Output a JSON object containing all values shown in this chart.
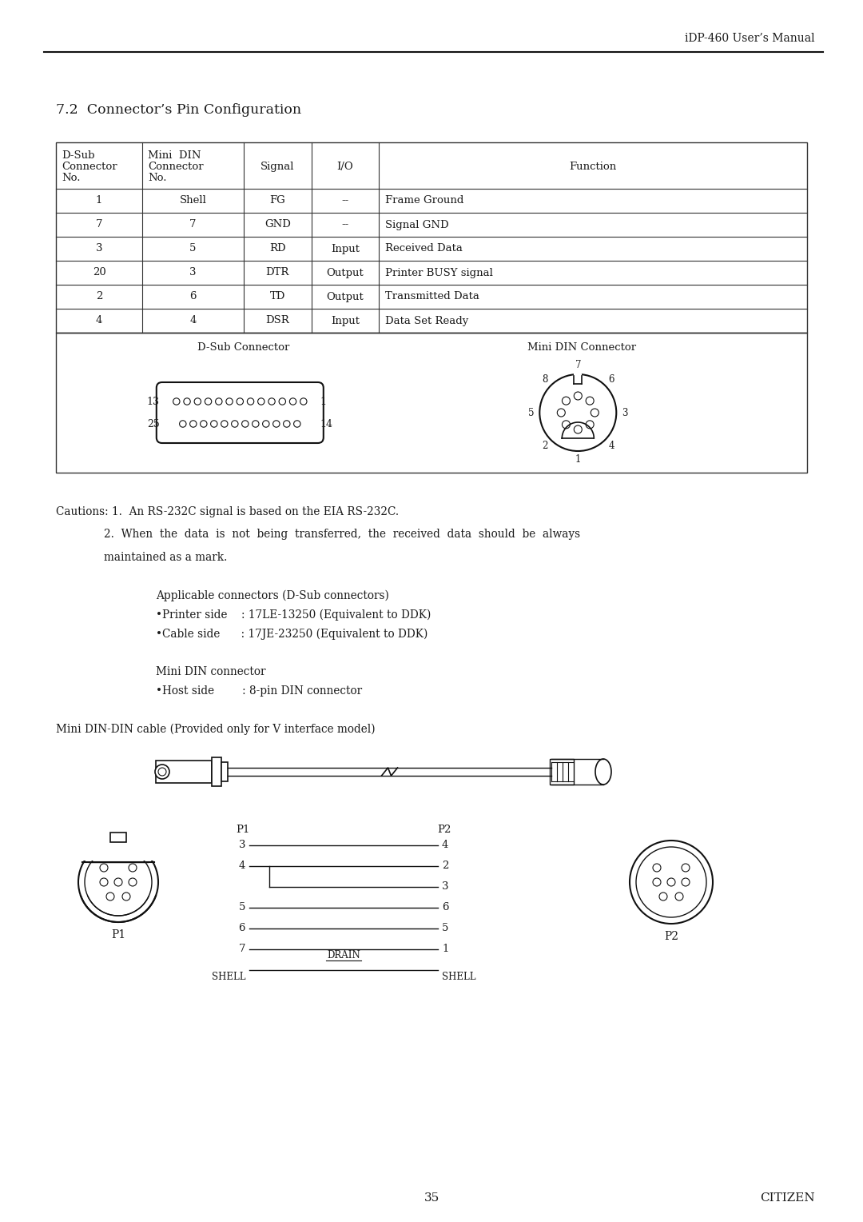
{
  "header_right": "iDP-460 User’s Manual",
  "section_title": "7.2  Connector’s Pin Configuration",
  "table_headers": [
    "D-Sub\nConnector\nNo.",
    "Mini  DIN\nConnector\nNo.",
    "Signal",
    "I/O",
    "Function"
  ],
  "table_rows": [
    [
      "1",
      "Shell",
      "FG",
      "--",
      "Frame Ground"
    ],
    [
      "7",
      "7",
      "GND",
      "--",
      "Signal GND"
    ],
    [
      "3",
      "5",
      "RD",
      "Input",
      "Received Data"
    ],
    [
      "20",
      "3",
      "DTR",
      "Output",
      "Printer BUSY signal"
    ],
    [
      "2",
      "6",
      "TD",
      "Output",
      "Transmitted Data"
    ],
    [
      "4",
      "4",
      "DSR",
      "Input",
      "Data Set Ready"
    ]
  ],
  "diagram_label_left": "D-Sub Connector",
  "diagram_label_right": "Mini DIN Connector",
  "caution_line1": "Cautions: 1.  An RS-232C signal is based on the EIA RS-232C.",
  "caution_line2": "2.  When  the  data  is  not  being  transferred,  the  received  data  should  be  always",
  "caution_line3": "maintained as a mark.",
  "applicable_header": "Applicable connectors (D-Sub connectors)",
  "applicable_1": "•Printer side    : 17LE-13250 (Equivalent to DDK)",
  "applicable_2": "•Cable side      : 17JE-23250 (Equivalent to DDK)",
  "mini_din_header": "Mini DIN connector",
  "mini_din_1": "•Host side        : 8-pin DIN connector",
  "cable_header": "Mini DIN-DIN cable (Provided only for V interface model)",
  "page_number": "35",
  "page_brand": "CITIZEN",
  "bg_color": "#ffffff",
  "text_color": "#1a1a1a",
  "table_border_color": "#333333"
}
